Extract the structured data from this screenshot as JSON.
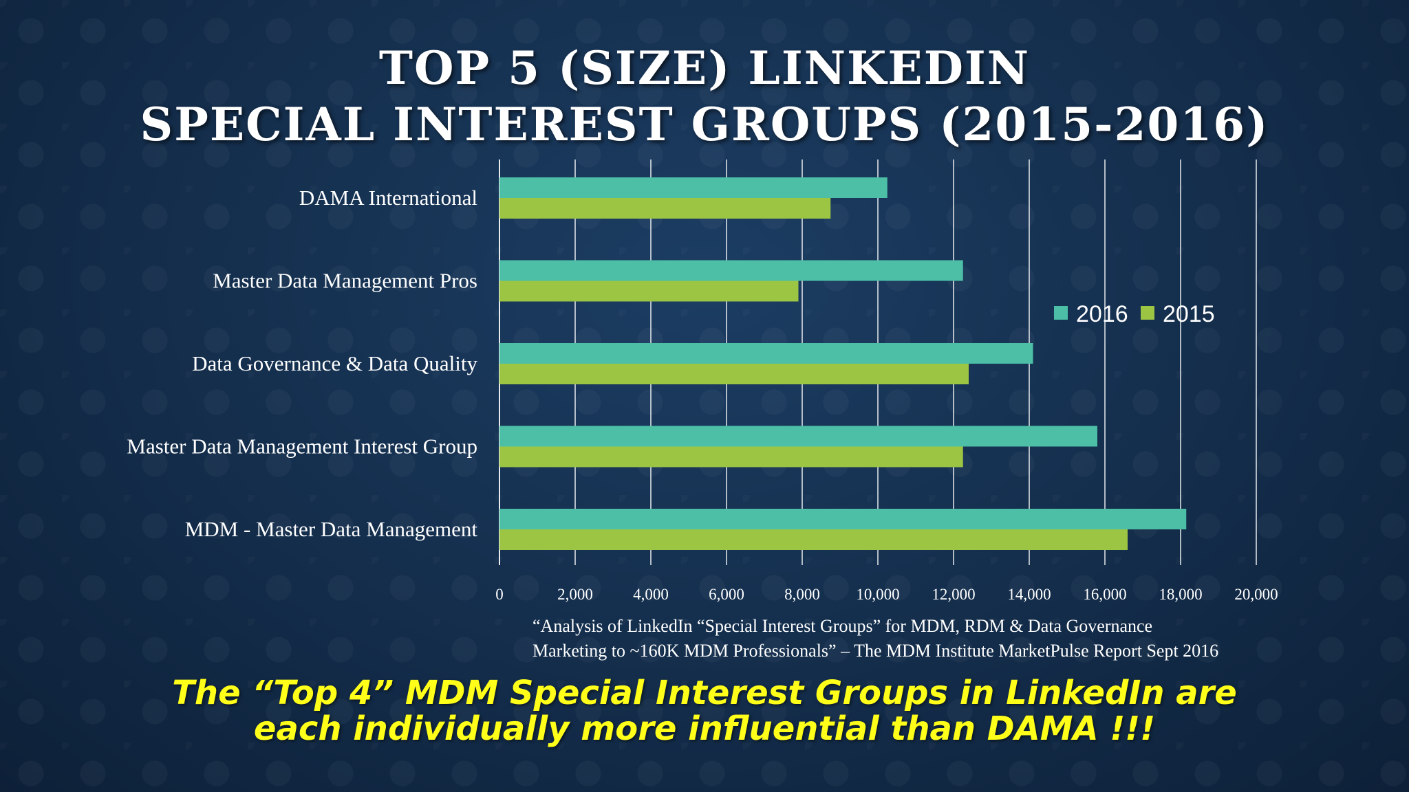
{
  "slide": {
    "title_line1": "TOP 5 (SIZE) LINKEDIN",
    "title_line2": "SPECIAL INTEREST GROUPS (2015-2016)",
    "source_line1": "“Analysis of LinkedIn “Special Interest Groups” for MDM, RDM & Data Governance",
    "source_line2": "Marketing to ~160K MDM Professionals” –  The MDM Institute MarketPulse Report Sept 2016",
    "callout_line1": "The “Top 4” MDM Special Interest Groups in LinkedIn are",
    "callout_line2": "each individually more influential than DAMA !!!"
  },
  "colors": {
    "series_2016": "#4cbfa6",
    "series_2015": "#9dc544",
    "gridline": "#ffffff"
  },
  "chart_data": {
    "type": "bar",
    "orientation": "horizontal",
    "categories": [
      "DAMA International",
      "Master Data Management Pros",
      "Data Governance & Data Quality",
      "Master Data Management Interest Group",
      "MDM - Master Data Management"
    ],
    "series": [
      {
        "name": "2016",
        "values": [
          10250,
          12250,
          14100,
          15800,
          18150
        ]
      },
      {
        "name": "2015",
        "values": [
          8750,
          7900,
          12400,
          12250,
          16600
        ]
      }
    ],
    "xlim": [
      0,
      20000
    ],
    "xticks": [
      "0",
      "2,000",
      "4,000",
      "6,000",
      "8,000",
      "10,000",
      "12,000",
      "14,000",
      "16,000",
      "18,000",
      "20,000"
    ],
    "grid": true,
    "legend_position": "right"
  }
}
